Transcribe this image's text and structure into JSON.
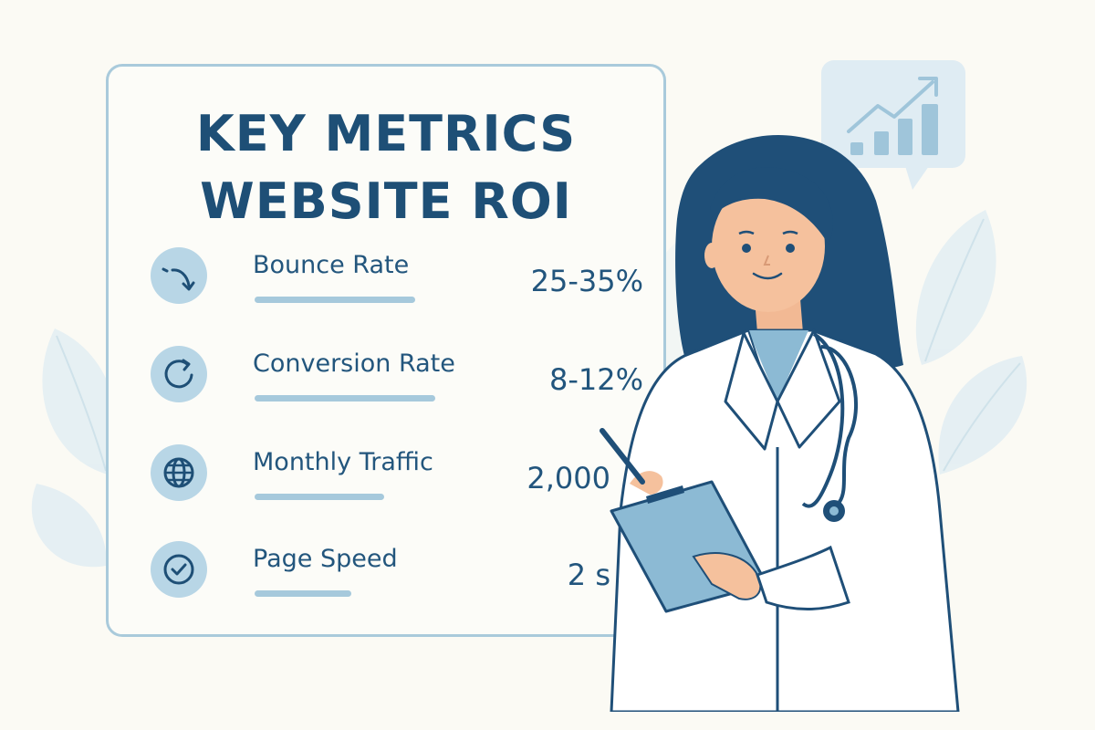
{
  "title": {
    "line1": "KEY METRICS",
    "line2": "WEBSITE ROI"
  },
  "metrics": [
    {
      "label": "Bounce Rate",
      "value": "25-35%",
      "icon": "bounce-arrow-icon"
    },
    {
      "label": "Conversion Rate",
      "value": "8-12%",
      "icon": "refresh-icon"
    },
    {
      "label": "Monthly Traffic",
      "value": "2,000",
      "icon": "globe-icon"
    },
    {
      "label": "Page Speed",
      "value": "2 s",
      "icon": "check-icon"
    }
  ],
  "colors": {
    "background": "#fbfaf4",
    "primary_text": "#1e4f76",
    "accent": "#a6c9dc",
    "icon_circle": "#b8d6e6",
    "leaf": "#e3eef2"
  }
}
